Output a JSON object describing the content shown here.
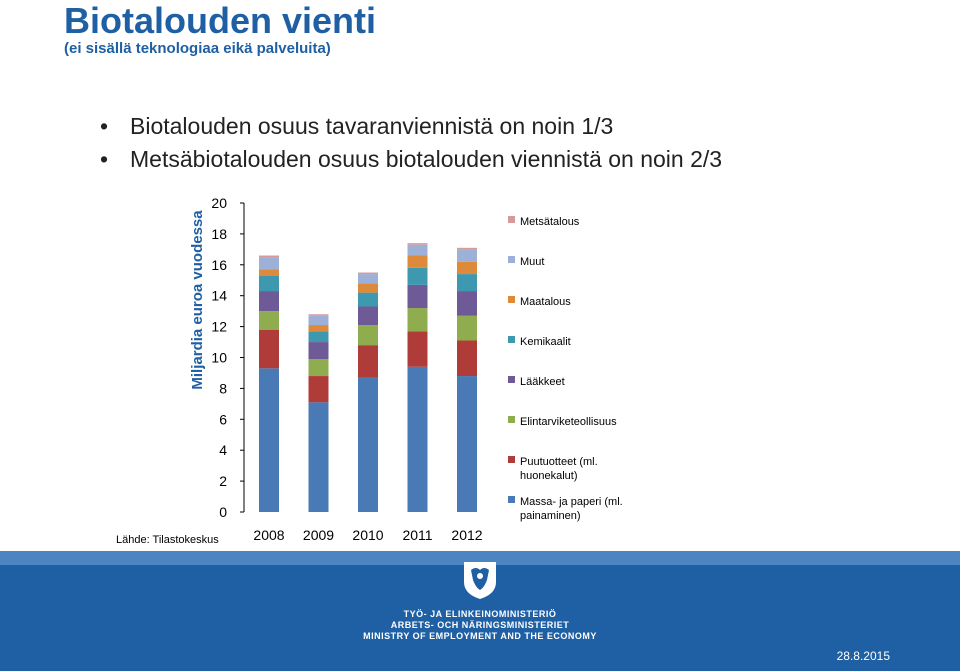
{
  "slide": {
    "title": "Biotalouden vienti",
    "subtitle": "(ei sisällä teknologiaa eikä palveluita)",
    "bullets": [
      "Biotalouden osuus tavaranviennistä on noin 1/3",
      "Metsäbiotalouden osuus biotalouden viennistä on noin 2/3"
    ],
    "source": "Lähde: Tilastokeskus",
    "ministry_lines": [
      "TYÖ- JA ELINKEINOMINISTERIÖ",
      "ARBETS- OCH NÄRINGSMINISTERIET",
      "MINISTRY OF EMPLOYMENT AND THE ECONOMY"
    ],
    "date": "28.8.2015",
    "logo_icon": "finnish-lion-coat-of-arms"
  },
  "chart_data": {
    "type": "bar",
    "stacked": true,
    "categories": [
      "2008",
      "2009",
      "2010",
      "2011",
      "2012"
    ],
    "ylabel": "Miljardia euroa vuodessa",
    "xlabel": "",
    "ylim": [
      0,
      20
    ],
    "yticks": [
      0,
      2,
      4,
      6,
      8,
      10,
      12,
      14,
      16,
      18,
      20
    ],
    "grid": false,
    "legend_position": "right",
    "series": [
      {
        "name": "Massa- ja paperi (ml. painaminen)",
        "color": "#4a7ab5",
        "values": [
          9.3,
          7.1,
          8.7,
          9.4,
          8.8
        ]
      },
      {
        "name": "Puutuotteet (ml. huonekalut)",
        "color": "#b03c3a",
        "values": [
          2.5,
          1.7,
          2.1,
          2.3,
          2.3
        ]
      },
      {
        "name": "Elintarviketeollisuus",
        "color": "#8fad4e",
        "values": [
          1.2,
          1.1,
          1.3,
          1.5,
          1.6
        ]
      },
      {
        "name": "Lääkkeet",
        "color": "#6e5a96",
        "values": [
          1.3,
          1.1,
          1.2,
          1.5,
          1.6
        ]
      },
      {
        "name": "Kemikaalit",
        "color": "#3d98b0",
        "values": [
          1.0,
          0.7,
          0.9,
          1.1,
          1.1
        ]
      },
      {
        "name": "Maatalous",
        "color": "#dd8a3b",
        "values": [
          0.4,
          0.4,
          0.6,
          0.8,
          0.8
        ]
      },
      {
        "name": "Muut",
        "color": "#9cb0d8",
        "values": [
          0.8,
          0.6,
          0.6,
          0.7,
          0.8
        ]
      },
      {
        "name": "Metsätalous",
        "color": "#d59a9a",
        "values": [
          0.1,
          0.1,
          0.1,
          0.1,
          0.1
        ]
      }
    ]
  }
}
